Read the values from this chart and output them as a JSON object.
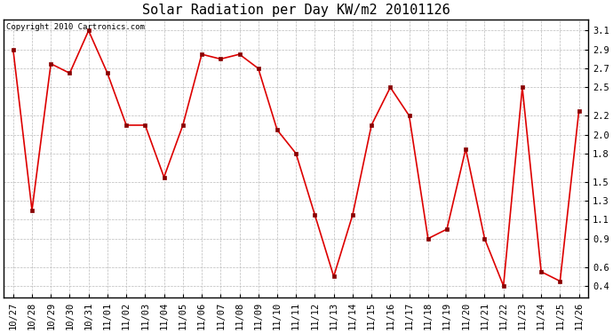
{
  "title": "Solar Radiation per Day KW/m2 20101126",
  "copyright": "Copyright 2010 Cartronics.com",
  "x_labels": [
    "10/27",
    "10/28",
    "10/29",
    "10/30",
    "10/31",
    "11/01",
    "11/02",
    "11/03",
    "11/04",
    "11/05",
    "11/06",
    "11/07",
    "11/08",
    "11/09",
    "11/10",
    "11/11",
    "11/12",
    "11/13",
    "11/14",
    "11/15",
    "11/16",
    "11/17",
    "11/18",
    "11/19",
    "11/20",
    "11/21",
    "11/22",
    "11/23",
    "11/24",
    "11/25",
    "11/26"
  ],
  "y_values": [
    2.9,
    1.2,
    2.75,
    2.65,
    3.1,
    2.65,
    2.1,
    2.1,
    1.55,
    2.1,
    2.85,
    2.8,
    2.85,
    2.7,
    2.05,
    1.8,
    1.15,
    0.5,
    1.15,
    2.1,
    2.5,
    2.2,
    0.9,
    1.0,
    1.85,
    0.9,
    0.4,
    2.5,
    0.55,
    0.45,
    2.25
  ],
  "line_color": "#dd0000",
  "marker_color": "#880000",
  "bg_color": "#ffffff",
  "plot_bg_color": "#ffffff",
  "grid_color": "#bbbbbb",
  "yticks": [
    0.4,
    0.6,
    0.9,
    1.1,
    1.3,
    1.5,
    1.8,
    2.0,
    2.2,
    2.5,
    2.7,
    2.9,
    3.1
  ],
  "ylim": [
    0.28,
    3.22
  ],
  "title_fontsize": 11,
  "copyright_fontsize": 6.5,
  "tick_fontsize": 7.5,
  "label_fontfamily": "monospace"
}
